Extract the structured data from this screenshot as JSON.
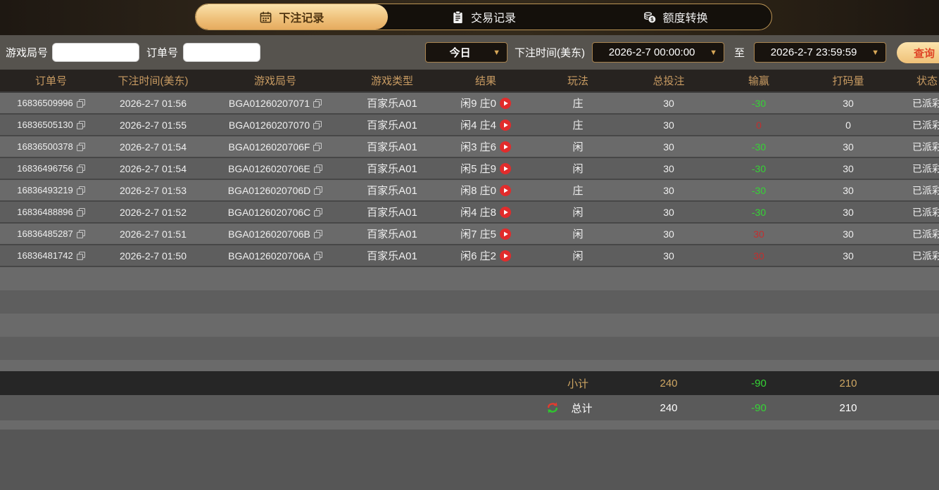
{
  "tabs": [
    {
      "label": "下注记录",
      "icon": "calendar-icon",
      "active": true
    },
    {
      "label": "交易记录",
      "icon": "clipboard-icon",
      "active": false
    },
    {
      "label": "额度转换",
      "icon": "coins-icon",
      "active": false
    }
  ],
  "filters": {
    "game_round_label": "游戏局号",
    "game_round_value": "",
    "order_no_label": "订单号",
    "order_no_value": "",
    "range_preset": "今日",
    "bet_time_label": "下注时间(美东)",
    "date_from": "2026-2-7 00:00:00",
    "to_label": "至",
    "date_to": "2026-2-7 23:59:59",
    "search_label": "查询"
  },
  "table": {
    "headers": [
      "订单号",
      "下注时间(美东)",
      "游戏局号",
      "游戏类型",
      "结果",
      "玩法",
      "总投注",
      "输赢",
      "打码量",
      "状态"
    ],
    "rows": [
      {
        "order_id": "16836509996",
        "bet_time": "2026-2-7 01:56",
        "round_id": "BGA01260207071",
        "game_type": "百家乐A01",
        "result": "闲9 庄0",
        "play": "庄",
        "total_bet": "30",
        "win": "-30",
        "win_color": "green",
        "turnover": "30",
        "status": "已派彩"
      },
      {
        "order_id": "16836505130",
        "bet_time": "2026-2-7 01:55",
        "round_id": "BGA01260207070",
        "game_type": "百家乐A01",
        "result": "闲4 庄4",
        "play": "庄",
        "total_bet": "30",
        "win": "0",
        "win_color": "red",
        "turnover": "0",
        "status": "已派彩"
      },
      {
        "order_id": "16836500378",
        "bet_time": "2026-2-7 01:54",
        "round_id": "BGA0126020706F",
        "game_type": "百家乐A01",
        "result": "闲3 庄6",
        "play": "闲",
        "total_bet": "30",
        "win": "-30",
        "win_color": "green",
        "turnover": "30",
        "status": "已派彩"
      },
      {
        "order_id": "16836496756",
        "bet_time": "2026-2-7 01:54",
        "round_id": "BGA0126020706E",
        "game_type": "百家乐A01",
        "result": "闲5 庄9",
        "play": "闲",
        "total_bet": "30",
        "win": "-30",
        "win_color": "green",
        "turnover": "30",
        "status": "已派彩"
      },
      {
        "order_id": "16836493219",
        "bet_time": "2026-2-7 01:53",
        "round_id": "BGA0126020706D",
        "game_type": "百家乐A01",
        "result": "闲8 庄0",
        "play": "庄",
        "total_bet": "30",
        "win": "-30",
        "win_color": "green",
        "turnover": "30",
        "status": "已派彩"
      },
      {
        "order_id": "16836488896",
        "bet_time": "2026-2-7 01:52",
        "round_id": "BGA0126020706C",
        "game_type": "百家乐A01",
        "result": "闲4 庄8",
        "play": "闲",
        "total_bet": "30",
        "win": "-30",
        "win_color": "green",
        "turnover": "30",
        "status": "已派彩"
      },
      {
        "order_id": "16836485287",
        "bet_time": "2026-2-7 01:51",
        "round_id": "BGA0126020706B",
        "game_type": "百家乐A01",
        "result": "闲7 庄5",
        "play": "闲",
        "total_bet": "30",
        "win": "30",
        "win_color": "red",
        "turnover": "30",
        "status": "已派彩"
      },
      {
        "order_id": "16836481742",
        "bet_time": "2026-2-7 01:50",
        "round_id": "BGA0126020706A",
        "game_type": "百家乐A01",
        "result": "闲6 庄2",
        "play": "闲",
        "total_bet": "30",
        "win": "30",
        "win_color": "red",
        "turnover": "30",
        "status": "已派彩"
      }
    ],
    "empty_row_count": 7,
    "subtotal": {
      "label": "小计",
      "total_bet": "240",
      "win": "-90",
      "turnover": "210"
    },
    "total": {
      "label": "总计",
      "total_bet": "240",
      "win": "-90",
      "turnover": "210"
    }
  },
  "colors": {
    "accent_gold": "#d7a757",
    "active_tab_text": "#503511",
    "win_negative_green": "#35d435",
    "win_positive_red": "#c22f2f",
    "search_button_text": "#df4527",
    "play_button_red": "#e12c2c",
    "row_light": "#6a6a6a",
    "row_dark": "#5e5e5e"
  }
}
